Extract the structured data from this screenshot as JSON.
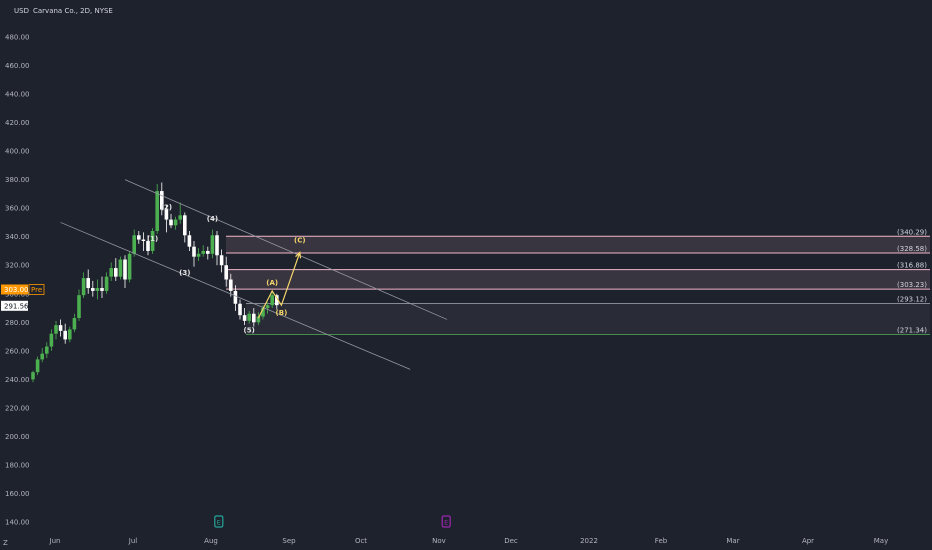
{
  "header": {
    "currency": "USD",
    "symbol": "Carvana Co., 2D, NYSE"
  },
  "chart_data": {
    "type": "candlestick",
    "y_ticks": [
      "480.00",
      "460.00",
      "440.00",
      "420.00",
      "400.00",
      "380.00",
      "360.00",
      "340.00",
      "320.00",
      "300.00",
      "280.00",
      "260.00",
      "240.00",
      "220.00",
      "200.00",
      "180.00",
      "160.00",
      "140.00"
    ],
    "y_tick_values": [
      480,
      460,
      440,
      420,
      400,
      380,
      360,
      340,
      320,
      300,
      280,
      260,
      240,
      220,
      200,
      180,
      160,
      140
    ],
    "ylim": [
      132,
      495
    ],
    "x_labels": [
      "Jun",
      "Jul",
      "Aug",
      "Sep",
      "Oct",
      "Nov",
      "Dec",
      "2022",
      "Feb",
      "Mar",
      "Apr",
      "May"
    ],
    "price_tags": [
      {
        "label": "303.00",
        "value": 303.0,
        "color": "#ff9800",
        "extra": "Pre",
        "extra_color": "#ff9800"
      },
      {
        "label": "291.56",
        "value": 291.56,
        "color": "#ffffff",
        "extra": "",
        "extra_color": ""
      }
    ],
    "levels": [
      {
        "label": "(340.29)",
        "value": 340.29
      },
      {
        "label": "(328.58)",
        "value": 328.58
      },
      {
        "label": "(316.88)",
        "value": 316.88
      },
      {
        "label": "(303.23)",
        "value": 303.23
      },
      {
        "label": "(293.12)",
        "value": 293.12
      },
      {
        "label": "(271.34)",
        "value": 271.34
      }
    ],
    "wave_labels": [
      {
        "text": "(2)",
        "date_index": 29,
        "price": 359,
        "color": "white"
      },
      {
        "text": "(1)",
        "date_index": 26,
        "price": 337,
        "color": "white"
      },
      {
        "text": "(4)",
        "date_index": 39,
        "price": 351,
        "color": "white"
      },
      {
        "text": "(3)",
        "date_index": 33,
        "price": 313,
        "color": "white"
      },
      {
        "text": "(5)",
        "date_index": 47,
        "price": 273,
        "color": "white"
      },
      {
        "text": "(A)",
        "date_index": 52,
        "price": 306,
        "color": "yellow"
      },
      {
        "text": "(B)",
        "date_index": 54,
        "price": 285,
        "color": "yellow"
      },
      {
        "text": "(C)",
        "date_index": 58,
        "price": 336,
        "color": "yellow"
      }
    ],
    "candles": [
      {
        "o": 240,
        "h": 246,
        "l": 238,
        "c": 245
      },
      {
        "o": 245,
        "h": 256,
        "l": 243,
        "c": 254
      },
      {
        "o": 254,
        "h": 262,
        "l": 252,
        "c": 258
      },
      {
        "o": 258,
        "h": 266,
        "l": 255,
        "c": 263
      },
      {
        "o": 263,
        "h": 275,
        "l": 260,
        "c": 272
      },
      {
        "o": 272,
        "h": 281,
        "l": 268,
        "c": 278
      },
      {
        "o": 278,
        "h": 282,
        "l": 270,
        "c": 274
      },
      {
        "o": 274,
        "h": 279,
        "l": 265,
        "c": 268
      },
      {
        "o": 268,
        "h": 277,
        "l": 266,
        "c": 275
      },
      {
        "o": 275,
        "h": 286,
        "l": 273,
        "c": 283
      },
      {
        "o": 283,
        "h": 303,
        "l": 281,
        "c": 299
      },
      {
        "o": 299,
        "h": 315,
        "l": 297,
        "c": 311
      },
      {
        "o": 311,
        "h": 317,
        "l": 300,
        "c": 304
      },
      {
        "o": 304,
        "h": 309,
        "l": 298,
        "c": 302
      },
      {
        "o": 302,
        "h": 310,
        "l": 296,
        "c": 304
      },
      {
        "o": 304,
        "h": 312,
        "l": 297,
        "c": 302
      },
      {
        "o": 302,
        "h": 315,
        "l": 300,
        "c": 312
      },
      {
        "o": 312,
        "h": 322,
        "l": 309,
        "c": 318
      },
      {
        "o": 318,
        "h": 325,
        "l": 309,
        "c": 312
      },
      {
        "o": 312,
        "h": 326,
        "l": 310,
        "c": 324
      },
      {
        "o": 324,
        "h": 327,
        "l": 304,
        "c": 310
      },
      {
        "o": 310,
        "h": 330,
        "l": 308,
        "c": 328
      },
      {
        "o": 328,
        "h": 345,
        "l": 326,
        "c": 341
      },
      {
        "o": 341,
        "h": 344,
        "l": 335,
        "c": 338
      },
      {
        "o": 338,
        "h": 343,
        "l": 330,
        "c": 337
      },
      {
        "o": 337,
        "h": 341,
        "l": 327,
        "c": 330
      },
      {
        "o": 330,
        "h": 346,
        "l": 328,
        "c": 344
      },
      {
        "o": 344,
        "h": 377,
        "l": 342,
        "c": 372
      },
      {
        "o": 372,
        "h": 378,
        "l": 355,
        "c": 359
      },
      {
        "o": 359,
        "h": 362,
        "l": 343,
        "c": 352
      },
      {
        "o": 352,
        "h": 356,
        "l": 346,
        "c": 348
      },
      {
        "o": 348,
        "h": 354,
        "l": 345,
        "c": 352
      },
      {
        "o": 352,
        "h": 364,
        "l": 349,
        "c": 355
      },
      {
        "o": 355,
        "h": 357,
        "l": 336,
        "c": 341
      },
      {
        "o": 341,
        "h": 344,
        "l": 330,
        "c": 333
      },
      {
        "o": 333,
        "h": 337,
        "l": 319,
        "c": 326
      },
      {
        "o": 326,
        "h": 332,
        "l": 323,
        "c": 328
      },
      {
        "o": 328,
        "h": 334,
        "l": 326,
        "c": 330
      },
      {
        "o": 330,
        "h": 333,
        "l": 324,
        "c": 328
      },
      {
        "o": 328,
        "h": 345,
        "l": 325,
        "c": 341
      },
      {
        "o": 341,
        "h": 344,
        "l": 320,
        "c": 327
      },
      {
        "o": 327,
        "h": 331,
        "l": 315,
        "c": 320
      },
      {
        "o": 320,
        "h": 326,
        "l": 305,
        "c": 310
      },
      {
        "o": 310,
        "h": 314,
        "l": 298,
        "c": 302
      },
      {
        "o": 302,
        "h": 306,
        "l": 288,
        "c": 293
      },
      {
        "o": 293,
        "h": 296,
        "l": 282,
        "c": 285
      },
      {
        "o": 285,
        "h": 290,
        "l": 278,
        "c": 281
      },
      {
        "o": 281,
        "h": 288,
        "l": 279,
        "c": 286
      },
      {
        "o": 286,
        "h": 290,
        "l": 277,
        "c": 280
      },
      {
        "o": 280,
        "h": 287,
        "l": 278,
        "c": 284
      },
      {
        "o": 284,
        "h": 292,
        "l": 282,
        "c": 290
      },
      {
        "o": 290,
        "h": 294,
        "l": 286,
        "c": 292
      },
      {
        "o": 292,
        "h": 302,
        "l": 290,
        "c": 299
      },
      {
        "o": 299,
        "h": 300,
        "l": 289,
        "c": 292
      }
    ],
    "channel_upper": {
      "from": {
        "date_index": 20,
        "price": 380
      },
      "to": {
        "date_index": 90,
        "price": 282
      }
    },
    "channel_lower": {
      "from": {
        "date_index": 6,
        "price": 350
      },
      "to": {
        "date_index": 82,
        "price": 247
      }
    },
    "projection_path": [
      {
        "date_index": 49,
        "price": 283
      },
      {
        "date_index": 52,
        "price": 302
      },
      {
        "date_index": 54,
        "price": 292
      },
      {
        "date_index": 58,
        "price": 329
      }
    ],
    "events": [
      {
        "label": "E",
        "x_label_index": 2.1,
        "color": "#26a69a"
      },
      {
        "label": "E",
        "x_label_index": 5.1,
        "color": "#9c27b0"
      }
    ]
  },
  "corner": "Z"
}
